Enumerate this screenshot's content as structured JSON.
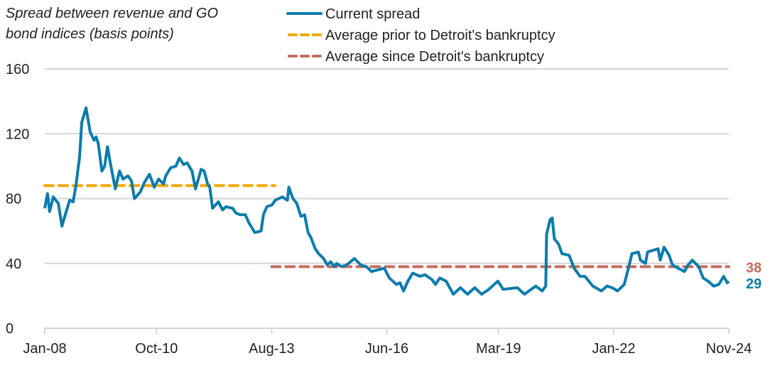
{
  "chart_data": {
    "type": "line",
    "title": "Spread between revenue and GO bond indices (basis points)",
    "title_lines": [
      "Spread between revenue and GO",
      "bond indices (basis points)"
    ],
    "xlabel": "",
    "ylabel": "",
    "ylim": [
      0,
      160
    ],
    "yticks": [
      0,
      40,
      80,
      120,
      160
    ],
    "ytick_labels": [
      "0",
      "40",
      "80",
      "120",
      "160"
    ],
    "xlim": [
      "2008-01-01",
      "2024-11-01"
    ],
    "xticks": [
      "2008-01-01",
      "2010-10-01",
      "2013-08-01",
      "2016-06-01",
      "2019-03-01",
      "2022-01-01",
      "2024-11-01"
    ],
    "xtick_labels": [
      "Jan-08",
      "Oct-10",
      "Aug-13",
      "Jun-16",
      "Mar-19",
      "Jan-22",
      "Nov-24"
    ],
    "grid": "horizontal",
    "legend_placement": "top-right",
    "colors": {
      "current": "#0a7cab",
      "prior_avg": "#f2a900",
      "since_avg": "#c46e5e"
    },
    "series": [
      {
        "name": "Current spread",
        "style": "solid",
        "end_label": "29",
        "points": [
          [
            "2008-01-01",
            74
          ],
          [
            "2008-01-26",
            83
          ],
          [
            "2008-02-14",
            72
          ],
          [
            "2008-03-17",
            81
          ],
          [
            "2008-05-01",
            77
          ],
          [
            "2008-06-03",
            63
          ],
          [
            "2008-07-11",
            72
          ],
          [
            "2008-08-12",
            79
          ],
          [
            "2008-09-13",
            78
          ],
          [
            "2008-10-09",
            89
          ],
          [
            "2008-11-10",
            106
          ],
          [
            "2008-11-29",
            127
          ],
          [
            "2009-01-07",
            136
          ],
          [
            "2009-02-14",
            121
          ],
          [
            "2009-03-18",
            116
          ],
          [
            "2009-04-06",
            118
          ],
          [
            "2009-04-25",
            114
          ],
          [
            "2009-05-27",
            97
          ],
          [
            "2009-06-22",
            100
          ],
          [
            "2009-07-17",
            112
          ],
          [
            "2009-08-12",
            102
          ],
          [
            "2009-09-26",
            86
          ],
          [
            "2009-11-03",
            97
          ],
          [
            "2009-12-05",
            92
          ],
          [
            "2010-01-18",
            94
          ],
          [
            "2010-02-19",
            91
          ],
          [
            "2010-03-16",
            80
          ],
          [
            "2010-05-07",
            84
          ],
          [
            "2010-06-14",
            90
          ],
          [
            "2010-07-29",
            95
          ],
          [
            "2010-09-12",
            87
          ],
          [
            "2010-10-20",
            92
          ],
          [
            "2010-12-04",
            89
          ],
          [
            "2010-12-23",
            94
          ],
          [
            "2011-02-06",
            99
          ],
          [
            "2011-03-23",
            100
          ],
          [
            "2011-04-24",
            105
          ],
          [
            "2011-06-01",
            101
          ],
          [
            "2011-07-03",
            102
          ],
          [
            "2011-07-28",
            99
          ],
          [
            "2011-08-16",
            97
          ],
          [
            "2011-09-17",
            86
          ],
          [
            "2011-11-07",
            98
          ],
          [
            "2011-12-03",
            97
          ],
          [
            "2012-01-04",
            89
          ],
          [
            "2012-01-23",
            87
          ],
          [
            "2012-02-18",
            74
          ],
          [
            "2012-04-09",
            78
          ],
          [
            "2012-05-17",
            73
          ],
          [
            "2012-06-18",
            75
          ],
          [
            "2012-08-15",
            74
          ],
          [
            "2012-09-16",
            71
          ],
          [
            "2012-10-24",
            70
          ],
          [
            "2012-12-08",
            70
          ],
          [
            "2013-01-10",
            65
          ],
          [
            "2013-03-02",
            59
          ],
          [
            "2013-04-28",
            60
          ],
          [
            "2013-05-18",
            70
          ],
          [
            "2013-06-19",
            75
          ],
          [
            "2013-08-03",
            76
          ],
          [
            "2013-09-03",
            79
          ],
          [
            "2013-11-06",
            81
          ],
          [
            "2013-12-21",
            79
          ],
          [
            "2014-01-03",
            87
          ],
          [
            "2014-02-10",
            80
          ],
          [
            "2014-03-14",
            77
          ],
          [
            "2014-04-21",
            69
          ],
          [
            "2014-05-23",
            70
          ],
          [
            "2014-06-24",
            59
          ],
          [
            "2014-07-19",
            56
          ],
          [
            "2014-08-27",
            49
          ],
          [
            "2014-09-28",
            46
          ],
          [
            "2014-11-12",
            43
          ],
          [
            "2014-12-14",
            39
          ],
          [
            "2015-01-15",
            41
          ],
          [
            "2015-02-16",
            38
          ],
          [
            "2015-03-07",
            40
          ],
          [
            "2015-04-21",
            38
          ],
          [
            "2015-06-05",
            39
          ],
          [
            "2015-08-14",
            43
          ],
          [
            "2015-10-11",
            39
          ],
          [
            "2015-12-01",
            38
          ],
          [
            "2016-01-15",
            35
          ],
          [
            "2016-05-10",
            37
          ],
          [
            "2016-06-24",
            31
          ],
          [
            "2016-08-27",
            27
          ],
          [
            "2016-09-28",
            28
          ],
          [
            "2016-10-30",
            23
          ],
          [
            "2016-12-08",
            29
          ],
          [
            "2017-01-21",
            34
          ],
          [
            "2017-03-26",
            32
          ],
          [
            "2017-05-10",
            33
          ],
          [
            "2017-07-12",
            30
          ],
          [
            "2017-08-13",
            27
          ],
          [
            "2017-09-21",
            31
          ],
          [
            "2017-11-17",
            29
          ],
          [
            "2018-01-20",
            21
          ],
          [
            "2018-03-24",
            25
          ],
          [
            "2018-05-27",
            21
          ],
          [
            "2018-07-30",
            25
          ],
          [
            "2018-10-02",
            21
          ],
          [
            "2018-12-05",
            24
          ],
          [
            "2019-02-26",
            29
          ],
          [
            "2019-04-12",
            24
          ],
          [
            "2019-08-18",
            25
          ],
          [
            "2019-10-21",
            21
          ],
          [
            "2020-01-31",
            26
          ],
          [
            "2020-03-29",
            23
          ],
          [
            "2020-04-30",
            26
          ],
          [
            "2020-05-07",
            58
          ],
          [
            "2020-06-08",
            67
          ],
          [
            "2020-06-27",
            68
          ],
          [
            "2020-07-16",
            55
          ],
          [
            "2020-08-23",
            52
          ],
          [
            "2020-09-24",
            46
          ],
          [
            "2020-11-27",
            45
          ],
          [
            "2021-01-11",
            37
          ],
          [
            "2021-03-03",
            32
          ],
          [
            "2021-04-17",
            32
          ],
          [
            "2021-06-27",
            26
          ],
          [
            "2021-09-12",
            23
          ],
          [
            "2021-11-02",
            26
          ],
          [
            "2021-12-17",
            25
          ],
          [
            "2022-02-06",
            23
          ],
          [
            "2022-04-04",
            27
          ],
          [
            "2022-05-12",
            37
          ],
          [
            "2022-06-13",
            46
          ],
          [
            "2022-08-10",
            47
          ],
          [
            "2022-08-29",
            42
          ],
          [
            "2022-10-13",
            40
          ],
          [
            "2022-11-01",
            47
          ],
          [
            "2022-12-16",
            48
          ],
          [
            "2023-02-05",
            49
          ],
          [
            "2023-02-24",
            42
          ],
          [
            "2023-03-28",
            50
          ],
          [
            "2023-05-12",
            45
          ],
          [
            "2023-06-13",
            39
          ],
          [
            "2023-08-03",
            37
          ],
          [
            "2023-09-29",
            35
          ],
          [
            "2023-10-31",
            39
          ],
          [
            "2023-12-08",
            42
          ],
          [
            "2024-02-04",
            38
          ],
          [
            "2024-03-14",
            31
          ],
          [
            "2024-04-28",
            29
          ],
          [
            "2024-06-18",
            26
          ],
          [
            "2024-08-02",
            27
          ],
          [
            "2024-09-16",
            32
          ],
          [
            "2024-10-18",
            28
          ],
          [
            "2024-10-31",
            29
          ]
        ]
      },
      {
        "name": "Average prior to Detroit's bankruptcy",
        "style": "dashed",
        "value": 88,
        "start": "2008-01-01",
        "end": "2013-08-31"
      },
      {
        "name": "Average since Detroit's bankruptcy",
        "style": "dashed",
        "value": 38,
        "start": "2013-08-01",
        "end": "2024-11-01",
        "end_label": "38"
      }
    ]
  }
}
